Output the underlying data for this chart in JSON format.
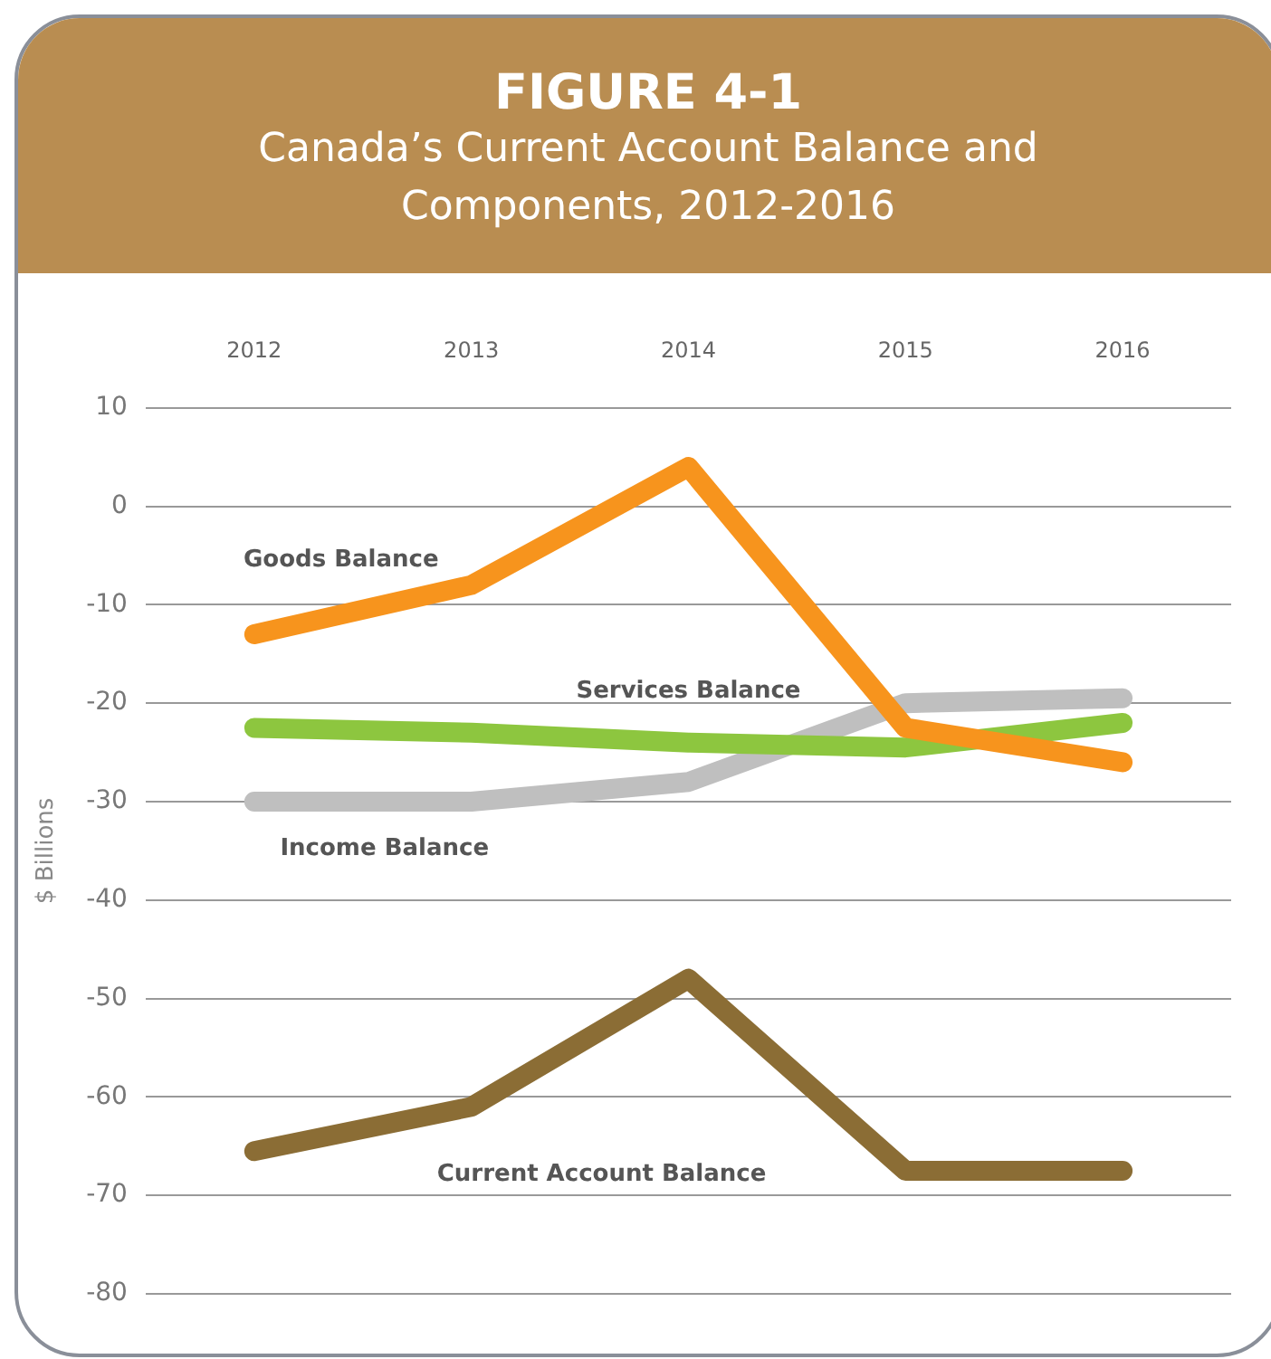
{
  "chart_data": {
    "type": "line",
    "title": "FIGURE 4-1",
    "subtitle": "Canada’s Current Account Balance and Components, 2012-2016",
    "ylabel": "$ Billions",
    "categories": [
      "2012",
      "2013",
      "2014",
      "2015",
      "2016"
    ],
    "series": [
      {
        "name": "Goods Balance",
        "color": "#f7941d",
        "values": [
          -13,
          -8,
          4,
          -22.5,
          -26
        ]
      },
      {
        "name": "Services Balance",
        "color": "#8dc63f",
        "values": [
          -22.5,
          -23,
          -24,
          -24.5,
          -22
        ]
      },
      {
        "name": "Income Balance",
        "color": "#bfbfbf",
        "values": [
          -30,
          -30,
          -28,
          -20,
          -19.5
        ]
      },
      {
        "name": "Current Account Balance",
        "color": "#8b6d35",
        "values": [
          -65.5,
          -61,
          -48,
          -67.5,
          -67.5
        ]
      }
    ],
    "ylim": [
      -80,
      10
    ],
    "yticks": [
      10,
      0,
      -10,
      -20,
      -30,
      -40,
      -50,
      -60,
      -70,
      -80
    ],
    "grid": "y",
    "marker": "none",
    "line_style": "solid",
    "legend": false
  }
}
